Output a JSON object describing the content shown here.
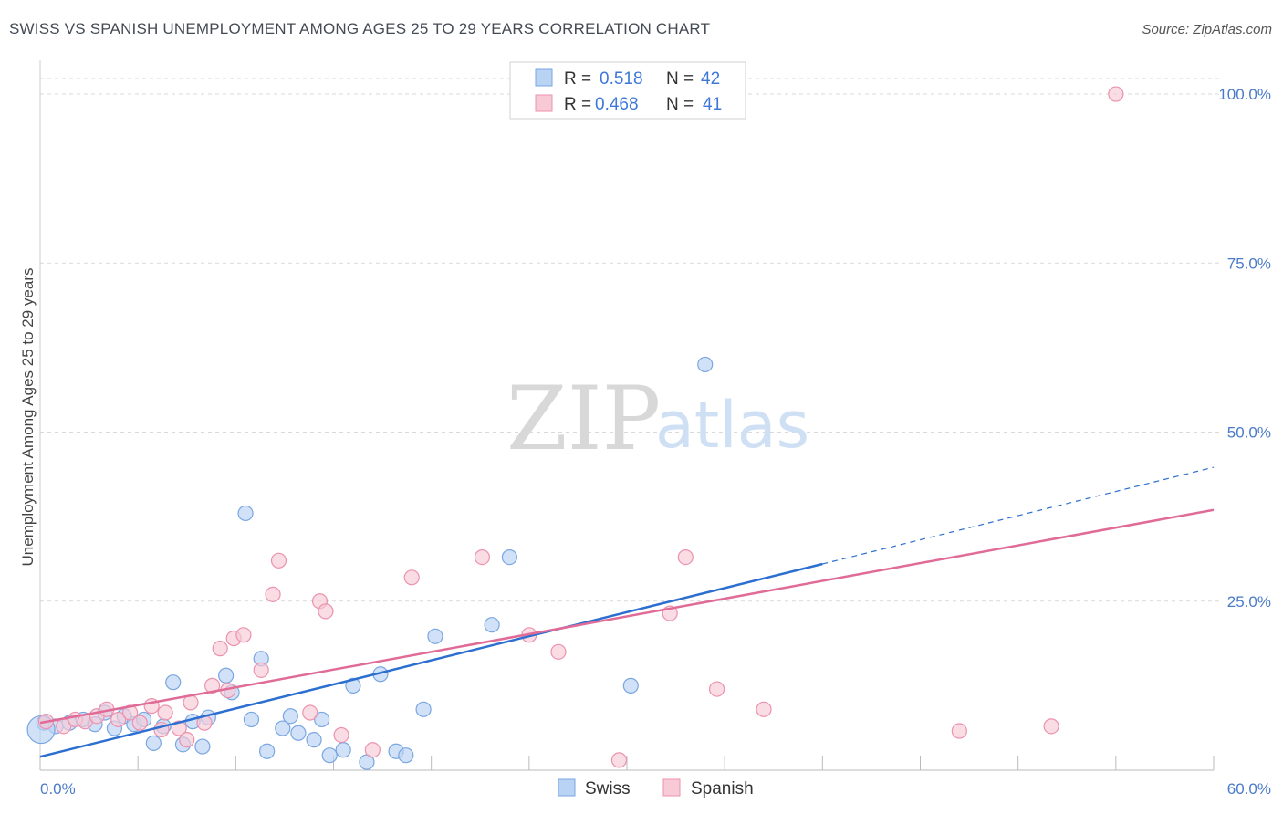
{
  "title": "SWISS VS SPANISH UNEMPLOYMENT AMONG AGES 25 TO 29 YEARS CORRELATION CHART",
  "source": "Source: ZipAtlas.com",
  "watermark": {
    "zip": "ZIP",
    "atlas": "atlas"
  },
  "colors": {
    "swiss_fill": "#b9d3f5",
    "swiss_stroke": "#7aa6e0",
    "swiss_line": "#2d6fd0",
    "spanish_fill": "#f8c9d6",
    "spanish_stroke": "#ec92ad",
    "spanish_line": "#e06b96",
    "grid": "#d9d9d9",
    "tick_text": "#4a7bc8"
  },
  "legend_top": {
    "rows": [
      {
        "r_label": "R = ",
        "r_value": "0.518",
        "n_label": "N = ",
        "n_value": "42"
      },
      {
        "r_label": "R = ",
        "r_value": "0.468",
        "n_label": "N = ",
        "n_value": "41"
      }
    ]
  },
  "legend_bottom": [
    "Swiss",
    "Spanish"
  ],
  "chart_data": {
    "type": "scatter",
    "xlabel": "",
    "ylabel": "Unemployment Among Ages 25 to 29 years",
    "xlim": [
      0,
      60
    ],
    "ylim": [
      0,
      105
    ],
    "x_tick_labels": [
      "0.0%",
      "60.0%"
    ],
    "y_ticks": [
      25,
      50,
      75,
      100
    ],
    "y_tick_labels": [
      "25.0%",
      "50.0%",
      "75.0%",
      "100.0%"
    ],
    "grid": true,
    "legend_position": "top-center",
    "series": [
      {
        "name": "Swiss",
        "r": 0.518,
        "n": 42,
        "trend": {
          "x0": 0,
          "y0": 2.0,
          "x1": 40,
          "y1": 30.5,
          "dash_to_x": 60,
          "dash_to_y": 44.8
        },
        "points": [
          [
            0.2,
            7.0
          ],
          [
            0.8,
            6.5
          ],
          [
            1.5,
            7.0
          ],
          [
            2.2,
            7.5
          ],
          [
            2.8,
            6.8
          ],
          [
            3.3,
            8.5
          ],
          [
            3.8,
            6.2
          ],
          [
            4.3,
            8.0
          ],
          [
            4.8,
            6.8
          ],
          [
            5.3,
            7.5
          ],
          [
            5.8,
            4.0
          ],
          [
            6.3,
            6.5
          ],
          [
            6.8,
            13.0
          ],
          [
            7.3,
            3.8
          ],
          [
            7.8,
            7.2
          ],
          [
            8.3,
            3.5
          ],
          [
            8.6,
            7.8
          ],
          [
            9.5,
            14.0
          ],
          [
            9.8,
            11.5
          ],
          [
            10.5,
            38.0
          ],
          [
            10.8,
            7.5
          ],
          [
            11.3,
            16.5
          ],
          [
            11.6,
            2.8
          ],
          [
            12.4,
            6.2
          ],
          [
            12.8,
            8.0
          ],
          [
            13.2,
            5.5
          ],
          [
            14.0,
            4.5
          ],
          [
            14.4,
            7.5
          ],
          [
            14.8,
            2.2
          ],
          [
            15.5,
            3.0
          ],
          [
            16.0,
            12.5
          ],
          [
            16.7,
            1.2
          ],
          [
            17.4,
            14.2
          ],
          [
            18.2,
            2.8
          ],
          [
            18.7,
            2.2
          ],
          [
            19.6,
            9.0
          ],
          [
            20.2,
            19.8
          ],
          [
            23.1,
            21.5
          ],
          [
            24.0,
            31.5
          ],
          [
            30.2,
            12.5
          ],
          [
            34.0,
            60.0
          ],
          [
            0.05,
            6.0
          ]
        ]
      },
      {
        "name": "Spanish",
        "r": 0.468,
        "n": 41,
        "trend": {
          "x0": 0,
          "y0": 7.0,
          "x1": 60,
          "y1": 38.5
        },
        "points": [
          [
            0.3,
            7.2
          ],
          [
            1.2,
            6.5
          ],
          [
            1.8,
            7.5
          ],
          [
            2.3,
            7.2
          ],
          [
            2.9,
            8.0
          ],
          [
            3.4,
            9.0
          ],
          [
            4.0,
            7.5
          ],
          [
            4.6,
            8.5
          ],
          [
            5.1,
            7.0
          ],
          [
            5.7,
            9.5
          ],
          [
            6.2,
            6.0
          ],
          [
            6.4,
            8.5
          ],
          [
            7.1,
            6.2
          ],
          [
            7.5,
            4.5
          ],
          [
            7.7,
            10.0
          ],
          [
            8.4,
            7.0
          ],
          [
            8.8,
            12.5
          ],
          [
            9.2,
            18.0
          ],
          [
            9.6,
            11.8
          ],
          [
            9.9,
            19.5
          ],
          [
            10.4,
            20.0
          ],
          [
            11.3,
            14.8
          ],
          [
            11.9,
            26.0
          ],
          [
            12.2,
            31.0
          ],
          [
            13.8,
            8.5
          ],
          [
            14.3,
            25.0
          ],
          [
            14.6,
            23.5
          ],
          [
            15.4,
            5.2
          ],
          [
            17.0,
            3.0
          ],
          [
            19.0,
            28.5
          ],
          [
            22.6,
            31.5
          ],
          [
            25.0,
            20.0
          ],
          [
            26.5,
            17.5
          ],
          [
            29.6,
            1.5
          ],
          [
            32.2,
            23.2
          ],
          [
            33.0,
            31.5
          ],
          [
            34.6,
            12.0
          ],
          [
            37.0,
            9.0
          ],
          [
            47.0,
            5.8
          ],
          [
            51.7,
            6.5
          ],
          [
            55.0,
            100.0
          ]
        ]
      }
    ]
  }
}
